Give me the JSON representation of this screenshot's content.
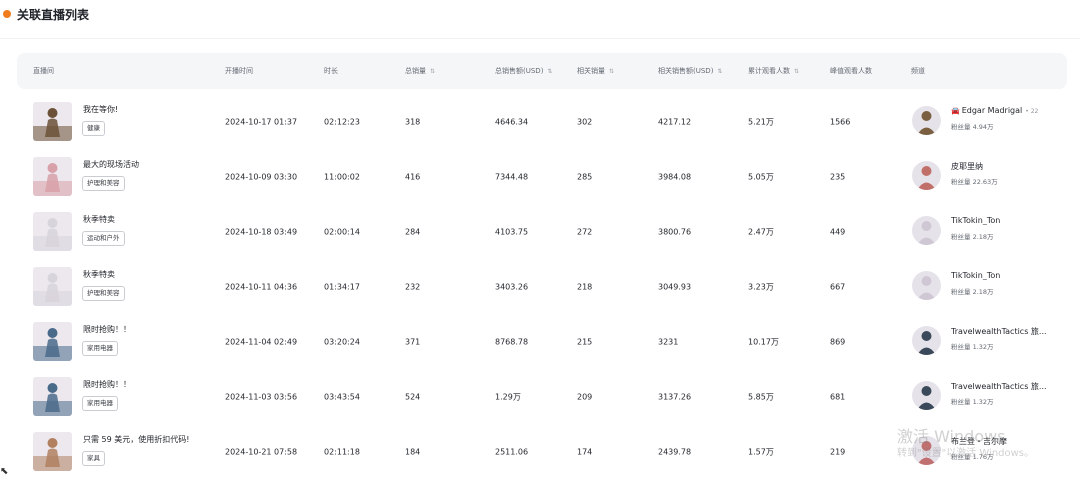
{
  "header": {
    "title": "关联直播列表"
  },
  "columns": [
    {
      "label": "直播间",
      "sortable": false
    },
    {
      "label": "开播时间",
      "sortable": false
    },
    {
      "label": "时长",
      "sortable": false
    },
    {
      "label": "总销量",
      "sortable": true
    },
    {
      "label": "总销售额(USD)",
      "sortable": true
    },
    {
      "label": "相关销量",
      "sortable": true
    },
    {
      "label": "相关销售额(USD)",
      "sortable": true
    },
    {
      "label": "累计观看人数",
      "sortable": true
    },
    {
      "label": "峰值观看人数",
      "sortable": false
    },
    {
      "label": "频道",
      "sortable": false
    }
  ],
  "sort_icon": "⇅",
  "rows": [
    {
      "title": "我在等你!",
      "tag": "健康",
      "start": "2024-10-17 01:37",
      "duration": "02:12:23",
      "total_sales": "318",
      "total_revenue": "4646.34",
      "rel_sales": "302",
      "rel_revenue": "4217.12",
      "views": "5.21万",
      "peak": "1566",
      "channel": "Edgar Madrigal",
      "channel_badge": "🚘",
      "channel_extra": "• 22",
      "fans": "粉丝量 4.94万",
      "thumb_color": "#6b5137",
      "avatar_color": "#7a6040"
    },
    {
      "title": "最大的现场活动",
      "tag": "护理和美容",
      "start": "2024-10-09 03:30",
      "duration": "11:00:02",
      "total_sales": "416",
      "total_revenue": "7344.48",
      "rel_sales": "285",
      "rel_revenue": "3984.08",
      "views": "5.05万",
      "peak": "235",
      "channel": "皮耶里纳",
      "channel_badge": "",
      "channel_extra": "",
      "fans": "粉丝量 22.63万",
      "thumb_color": "#d8a0a8",
      "avatar_color": "#c07068"
    },
    {
      "title": "秋季特卖",
      "tag": "运动和户外",
      "start": "2024-10-18 03:49",
      "duration": "02:00:14",
      "total_sales": "284",
      "total_revenue": "4103.75",
      "rel_sales": "272",
      "rel_revenue": "3800.76",
      "views": "2.47万",
      "peak": "449",
      "channel": "TikTokin_Ton",
      "channel_badge": "",
      "channel_extra": "",
      "fans": "粉丝量 2.18万",
      "thumb_color": "#d8d4dc",
      "avatar_color": "#cfc8d4"
    },
    {
      "title": "秋季特卖",
      "tag": "护理和美容",
      "start": "2024-10-11 04:36",
      "duration": "01:34:17",
      "total_sales": "232",
      "total_revenue": "3403.26",
      "rel_sales": "218",
      "rel_revenue": "3049.93",
      "views": "3.23万",
      "peak": "667",
      "channel": "TikTokin_Ton",
      "channel_badge": "",
      "channel_extra": "",
      "fans": "粉丝量 2.18万",
      "thumb_color": "#d8d4dc",
      "avatar_color": "#cfc8d4"
    },
    {
      "title": "限时抢购！！",
      "tag": "家用电器",
      "start": "2024-11-04 02:49",
      "duration": "03:20:24",
      "total_sales": "371",
      "total_revenue": "8768.78",
      "rel_sales": "215",
      "rel_revenue": "3231",
      "views": "10.17万",
      "peak": "869",
      "channel": "TravelwealthTactics 旅...",
      "channel_badge": "",
      "channel_extra": "",
      "fans": "粉丝量 1.32万",
      "thumb_color": "#4a6a8a",
      "avatar_color": "#3a4a5a"
    },
    {
      "title": "限时抢购！！",
      "tag": "家用电器",
      "start": "2024-11-03 03:56",
      "duration": "03:43:54",
      "total_sales": "524",
      "total_revenue": "1.29万",
      "rel_sales": "209",
      "rel_revenue": "3137.26",
      "views": "5.85万",
      "peak": "681",
      "channel": "TravelwealthTactics 旅...",
      "channel_badge": "",
      "channel_extra": "",
      "fans": "粉丝量 1.32万",
      "thumb_color": "#4a6a8a",
      "avatar_color": "#3a4a5a"
    },
    {
      "title": "只需 59 美元，使用折扣代码!",
      "tag": "家具",
      "start": "2024-10-21 07:58",
      "duration": "02:11:18",
      "total_sales": "184",
      "total_revenue": "2511.06",
      "rel_sales": "174",
      "rel_revenue": "2439.78",
      "views": "1.57万",
      "peak": "219",
      "channel": "布兰登・吉尔摩",
      "channel_badge": "",
      "channel_extra": "",
      "fans": "粉丝量 1.76万",
      "thumb_color": "#b08060",
      "avatar_color": "#c07070"
    }
  ],
  "watermark": {
    "line1": "激活 Windows",
    "line2": "转到\"设置\"以激活 Windows。"
  },
  "colors": {
    "accent_dot": "#f07c1e",
    "header_bg": "#f5f6f8"
  }
}
